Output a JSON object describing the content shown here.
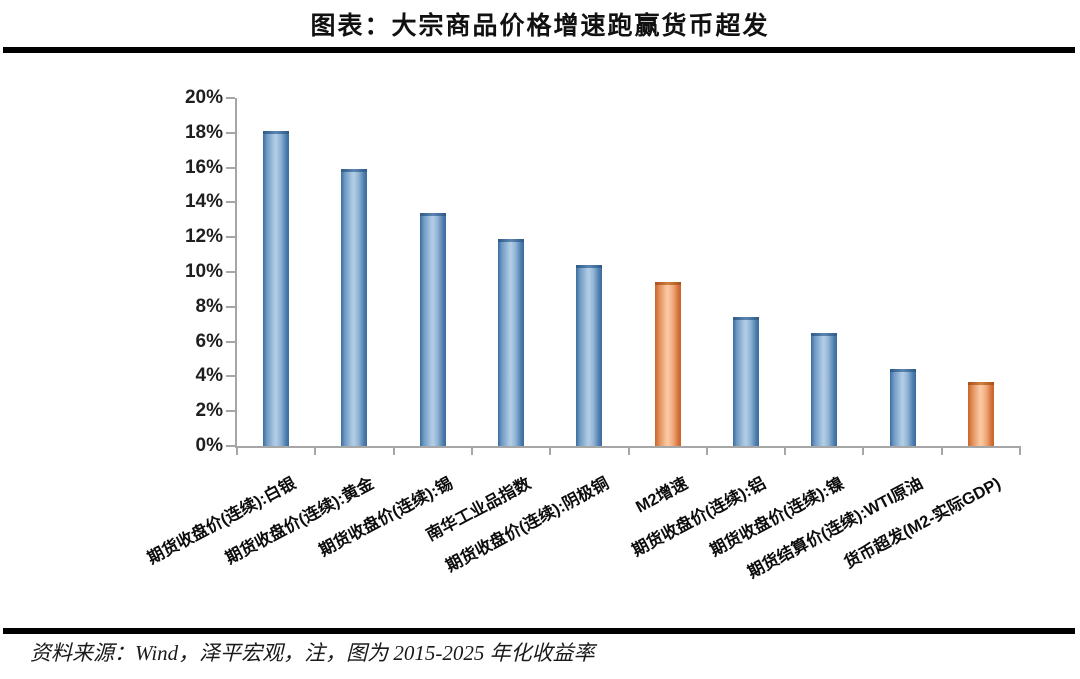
{
  "page": {
    "title": "图表：大宗商品价格增速跑赢货币超发",
    "footer": "资料来源：Wind，泽平宏观，注，图为 2015-2025 年化收益率"
  },
  "chart_data": {
    "type": "bar",
    "title": "图表：大宗商品价格增速跑赢货币超发",
    "categories": [
      "期货收盘价(连续):白银",
      "期货收盘价(连续):黄金",
      "期货收盘价(连续):锡",
      "南华工业品指数",
      "期货收盘价(连续):阴极铜",
      "M2增速",
      "期货收盘价(连续):铝",
      "期货收盘价(连续):镍",
      "期货结算价(连续):WTI原油",
      "货币超发(M2-实际GDP)"
    ],
    "values": [
      18.1,
      15.9,
      13.4,
      11.9,
      10.4,
      9.4,
      7.4,
      6.5,
      4.4,
      3.7
    ],
    "unit": "%",
    "highlight_indices": [
      5,
      9
    ],
    "colors": {
      "default": "#4f81bd",
      "highlight": "#e8873f"
    },
    "xlabel": "",
    "ylabel": "",
    "ylim": [
      0,
      20
    ],
    "ytick_step": 2,
    "yticks": [
      "0%",
      "2%",
      "4%",
      "6%",
      "8%",
      "10%",
      "12%",
      "14%",
      "16%",
      "18%",
      "20%"
    ],
    "grid": false,
    "legend": "none",
    "x_label_rotation_deg": -28,
    "source": "Wind，泽平宏观",
    "note": "图为 2015-2025 年化收益率"
  }
}
